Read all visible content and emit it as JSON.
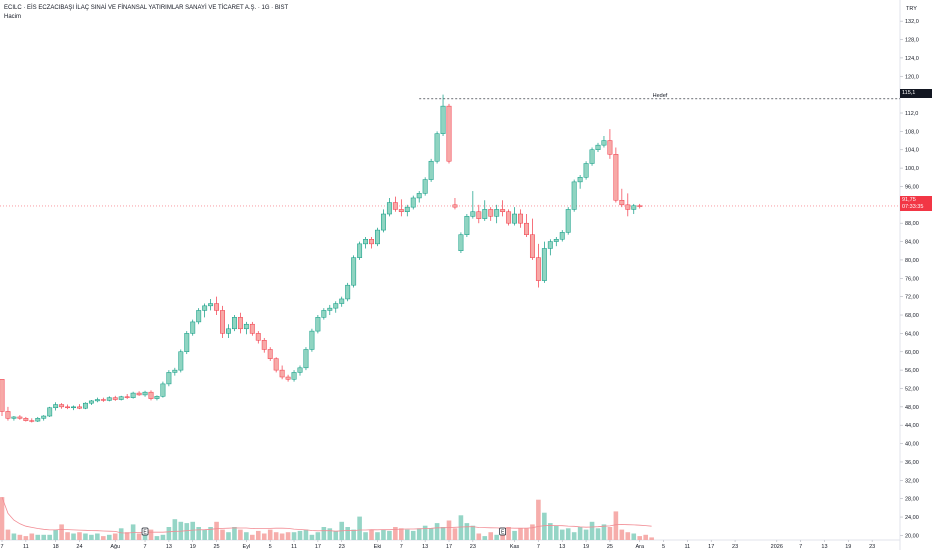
{
  "legend": {
    "title": "ECILC · EİS ECZACIBAŞI İLAÇ SINAİ VE FİNANSAL YATIRIMLAR SANAYİ VE TİCARET A.Ş. · 1G · BIST",
    "volume_label": "Hacim"
  },
  "currency": "TRY",
  "target": {
    "label": "Hedef",
    "value": "115,1"
  },
  "last_price": {
    "value": "91,75",
    "countdown": "07:33:35"
  },
  "colors": {
    "up": "#089981",
    "down": "#f23645",
    "up_body": "#8fd4c1",
    "down_body": "#f7a9a7",
    "vol_ma": "#f28b93"
  },
  "chart_data": {
    "type": "candlestick",
    "y_ticks": [
      "20,00",
      "24,00",
      "28,00",
      "32,00",
      "36,00",
      "40,00",
      "44,00",
      "48,00",
      "52,00",
      "56,00",
      "60,00",
      "64,00",
      "68,00",
      "72,00",
      "76,00",
      "80,00",
      "84,00",
      "88,00",
      "92,00",
      "96,00",
      "100,0",
      "104,0",
      "108,0",
      "112,0",
      "116,0",
      "120,0",
      "124,0",
      "128,0",
      "132,0"
    ],
    "ylim": [
      19,
      134
    ],
    "x_ticks": [
      {
        "label": "7",
        "i": 0
      },
      {
        "label": "11",
        "i": 4
      },
      {
        "label": "18",
        "i": 9
      },
      {
        "label": "24",
        "i": 13
      },
      {
        "label": "Ağu",
        "i": 19
      },
      {
        "label": "7",
        "i": 24
      },
      {
        "label": "13",
        "i": 28
      },
      {
        "label": "19",
        "i": 32
      },
      {
        "label": "25",
        "i": 36
      },
      {
        "label": "Eyl",
        "i": 41
      },
      {
        "label": "5",
        "i": 45
      },
      {
        "label": "11",
        "i": 49
      },
      {
        "label": "17",
        "i": 53
      },
      {
        "label": "23",
        "i": 57
      },
      {
        "label": "Eki",
        "i": 63
      },
      {
        "label": "7",
        "i": 67
      },
      {
        "label": "13",
        "i": 71
      },
      {
        "label": "17",
        "i": 75
      },
      {
        "label": "23",
        "i": 79
      },
      {
        "label": "Kas",
        "i": 86
      },
      {
        "label": "7",
        "i": 90
      },
      {
        "label": "13",
        "i": 94
      },
      {
        "label": "19",
        "i": 98
      },
      {
        "label": "25",
        "i": 102
      },
      {
        "label": "Ara",
        "i": 107
      },
      {
        "label": "5",
        "i": 111
      },
      {
        "label": "11",
        "i": 115
      },
      {
        "label": "17",
        "i": 119
      },
      {
        "label": "23",
        "i": 123
      },
      {
        "label": "2026",
        "i": 130
      },
      {
        "label": "7",
        "i": 134
      },
      {
        "label": "13",
        "i": 138
      },
      {
        "label": "19",
        "i": 142
      },
      {
        "label": "23",
        "i": 146
      }
    ],
    "event_markers": [
      {
        "label": "E",
        "i": 24
      },
      {
        "label": "E",
        "i": 84
      }
    ],
    "candles": [
      [
        54.0,
        54.0,
        46.0,
        47.0
      ],
      [
        47.0,
        48.0,
        45.0,
        45.5
      ],
      [
        45.5,
        46.0,
        45.0,
        45.8
      ],
      [
        45.8,
        46.2,
        45.2,
        45.5
      ],
      [
        45.5,
        45.8,
        44.8,
        45.0
      ],
      [
        45.0,
        45.5,
        44.6,
        44.9
      ],
      [
        44.9,
        45.8,
        44.7,
        45.5
      ],
      [
        45.5,
        46.2,
        45.0,
        46.0
      ],
      [
        46.0,
        48.0,
        45.8,
        47.8
      ],
      [
        47.8,
        49.0,
        47.2,
        48.5
      ],
      [
        48.5,
        48.8,
        47.6,
        48.0
      ],
      [
        48.0,
        48.5,
        47.5,
        47.8
      ],
      [
        47.8,
        48.3,
        47.3,
        48.0
      ],
      [
        48.0,
        48.6,
        47.5,
        47.7
      ],
      [
        47.7,
        49.0,
        47.5,
        48.8
      ],
      [
        48.8,
        49.5,
        48.4,
        49.3
      ],
      [
        49.3,
        50.0,
        49.0,
        49.6
      ],
      [
        49.6,
        50.0,
        49.1,
        49.4
      ],
      [
        49.4,
        50.3,
        49.2,
        50.0
      ],
      [
        50.0,
        50.4,
        49.3,
        49.6
      ],
      [
        49.6,
        50.4,
        49.4,
        50.2
      ],
      [
        50.2,
        50.8,
        49.7,
        50.0
      ],
      [
        50.0,
        51.3,
        49.8,
        51.0
      ],
      [
        51.0,
        51.4,
        50.4,
        50.6
      ],
      [
        50.6,
        51.5,
        50.2,
        51.2
      ],
      [
        51.2,
        51.6,
        49.4,
        49.8
      ],
      [
        49.8,
        50.5,
        49.4,
        50.3
      ],
      [
        50.3,
        53.5,
        50.0,
        53.0
      ],
      [
        53.0,
        56.0,
        52.5,
        55.5
      ],
      [
        55.5,
        56.5,
        54.8,
        56.0
      ],
      [
        56.0,
        60.5,
        55.5,
        60.0
      ],
      [
        60.0,
        64.5,
        59.5,
        64.0
      ],
      [
        64.0,
        67.0,
        63.5,
        66.5
      ],
      [
        66.5,
        69.5,
        66.0,
        69.0
      ],
      [
        69.0,
        70.5,
        67.5,
        70.0
      ],
      [
        70.0,
        71.5,
        69.0,
        70.5
      ],
      [
        70.5,
        72.0,
        68.0,
        69.0
      ],
      [
        69.0,
        70.0,
        63.0,
        64.0
      ],
      [
        64.0,
        66.0,
        63.0,
        65.0
      ],
      [
        65.0,
        68.0,
        64.5,
        67.5
      ],
      [
        67.5,
        68.5,
        64.0,
        65.0
      ],
      [
        65.0,
        66.5,
        63.8,
        66.0
      ],
      [
        66.0,
        66.5,
        63.5,
        64.0
      ],
      [
        64.0,
        64.5,
        61.8,
        62.5
      ],
      [
        62.5,
        63.0,
        59.8,
        60.5
      ],
      [
        60.5,
        61.0,
        58.0,
        58.5
      ],
      [
        58.5,
        58.8,
        55.5,
        56.0
      ],
      [
        56.0,
        57.0,
        54.0,
        54.5
      ],
      [
        54.5,
        55.0,
        53.5,
        54.0
      ],
      [
        54.0,
        56.0,
        53.5,
        55.5
      ],
      [
        55.5,
        57.0,
        54.8,
        56.5
      ],
      [
        56.5,
        61.0,
        56.0,
        60.5
      ],
      [
        60.5,
        65.0,
        60.0,
        64.5
      ],
      [
        64.5,
        68.0,
        64.0,
        67.5
      ],
      [
        67.5,
        69.5,
        67.0,
        69.0
      ],
      [
        69.0,
        70.2,
        68.0,
        69.5
      ],
      [
        69.5,
        71.0,
        68.5,
        70.5
      ],
      [
        70.5,
        72.0,
        69.8,
        71.5
      ],
      [
        71.5,
        75.0,
        71.0,
        74.5
      ],
      [
        74.5,
        81.0,
        74.0,
        80.5
      ],
      [
        80.5,
        84.0,
        80.0,
        83.5
      ],
      [
        83.5,
        85.0,
        82.5,
        84.5
      ],
      [
        84.5,
        85.0,
        82.5,
        83.5
      ],
      [
        83.5,
        87.0,
        83.0,
        86.5
      ],
      [
        86.5,
        91.0,
        86.0,
        90.0
      ],
      [
        90.0,
        93.5,
        89.5,
        92.5
      ],
      [
        92.5,
        93.8,
        90.5,
        91.0
      ],
      [
        91.0,
        93.2,
        89.5,
        90.5
      ],
      [
        90.5,
        92.0,
        89.5,
        91.5
      ],
      [
        91.5,
        94.0,
        91.0,
        93.5
      ],
      [
        93.5,
        95.0,
        92.5,
        94.5
      ],
      [
        94.5,
        98.0,
        94.0,
        97.5
      ],
      [
        97.5,
        102.0,
        97.0,
        101.5
      ],
      [
        101.5,
        108.0,
        101.0,
        107.5
      ],
      [
        107.5,
        116.0,
        107.0,
        113.5
      ],
      [
        113.5,
        114.0,
        101.0,
        101.5
      ],
      [
        92.0,
        93.5,
        91.0,
        91.5
      ],
      [
        82.0,
        86.0,
        81.5,
        85.5
      ],
      [
        85.5,
        90.0,
        85.0,
        89.5
      ],
      [
        89.5,
        95.0,
        89.0,
        90.5
      ],
      [
        90.5,
        92.0,
        88.0,
        89.0
      ],
      [
        89.0,
        93.0,
        88.5,
        91.0
      ],
      [
        91.0,
        91.5,
        88.5,
        89.5
      ],
      [
        89.5,
        92.0,
        88.0,
        91.0
      ],
      [
        91.0,
        93.0,
        89.5,
        90.5
      ],
      [
        90.5,
        91.0,
        87.5,
        88.0
      ],
      [
        88.0,
        91.5,
        87.5,
        90.0
      ],
      [
        90.0,
        91.0,
        87.0,
        88.0
      ],
      [
        88.0,
        90.0,
        85.0,
        85.5
      ],
      [
        85.5,
        89.0,
        80.0,
        80.5
      ],
      [
        80.5,
        83.5,
        74.0,
        75.5
      ],
      [
        75.5,
        84.0,
        75.0,
        82.5
      ],
      [
        82.5,
        84.5,
        81.0,
        84.0
      ],
      [
        84.0,
        85.0,
        83.0,
        84.5
      ],
      [
        84.5,
        86.5,
        84.0,
        86.0
      ],
      [
        86.0,
        91.5,
        85.5,
        91.0
      ],
      [
        91.0,
        97.5,
        90.5,
        97.0
      ],
      [
        97.0,
        98.5,
        95.5,
        98.0
      ],
      [
        98.0,
        101.5,
        97.5,
        101.0
      ],
      [
        101.0,
        104.5,
        100.5,
        104.0
      ],
      [
        104.0,
        105.5,
        103.5,
        105.0
      ],
      [
        105.0,
        107.0,
        104.5,
        106.0
      ],
      [
        106.0,
        108.5,
        102.0,
        103.0
      ],
      [
        103.0,
        104.5,
        92.5,
        93.0
      ],
      [
        93.0,
        95.5,
        91.5,
        92.0
      ],
      [
        92.0,
        94.5,
        89.5,
        91.0
      ],
      [
        91.0,
        92.2,
        90.0,
        91.8
      ],
      [
        91.8,
        92.2,
        91.2,
        91.75
      ]
    ],
    "volume_range": [
      0,
      60
    ],
    "volumes": [
      33,
      8,
      5,
      4,
      3,
      5,
      4,
      4,
      4,
      8,
      12,
      6,
      5,
      6,
      5,
      4,
      5,
      3,
      4,
      5,
      9,
      6,
      12,
      5,
      6,
      8,
      3,
      4,
      10,
      16,
      14,
      13,
      14,
      10,
      8,
      10,
      14,
      8,
      6,
      10,
      8,
      6,
      4,
      7,
      5,
      8,
      6,
      5,
      6,
      6,
      7,
      8,
      4,
      6,
      10,
      9,
      7,
      14,
      10,
      8,
      18,
      6,
      8,
      6,
      8,
      7,
      10,
      9,
      8,
      7,
      9,
      11,
      9,
      13,
      10,
      15,
      9,
      19,
      13,
      11,
      5,
      3,
      6,
      4,
      4,
      10,
      7,
      9,
      9,
      12,
      31,
      21,
      13,
      11,
      8,
      9,
      6,
      10,
      8,
      14,
      9,
      12,
      10,
      22,
      8,
      6,
      5,
      3,
      4,
      2
    ]
  }
}
